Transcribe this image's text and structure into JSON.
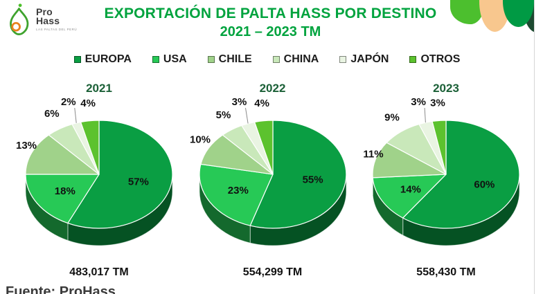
{
  "logo": {
    "brand_line1": "Pro",
    "brand_line2": "Hass",
    "tagline": "LAS PALTAS DEL PERÚ",
    "avocado_stroke": "#3fa32e",
    "pit_stroke": "#e8821e",
    "leaf_dot": "#4cbf2a"
  },
  "header": {
    "title_line1": "EXPORTACIÓN DE PALTA HASS POR DESTINO",
    "title_line2": "2021 – 2023  TM",
    "title_color": "#00a33e"
  },
  "decor": {
    "blob_colors": [
      "#4cbf2e",
      "#f8c78e",
      "#009a44",
      "#1d4a31"
    ]
  },
  "source_note": "Fuente: ProHass",
  "chart_data": {
    "type": "pie",
    "style": "3d",
    "title": "EXPORTACIÓN DE PALTA HASS POR DESTINO 2021 – 2023 TM",
    "unit": "%",
    "legend": [
      "EUROPA",
      "USA",
      "CHILE",
      "CHINA",
      "JAPÓN",
      "OTROS"
    ],
    "legend_position": "top",
    "colors": [
      "#0a9e43",
      "#27c956",
      "#a0d28a",
      "#c9e8ba",
      "#e9f4e2",
      "#5cc22e"
    ],
    "pies": [
      {
        "year": "2021",
        "values": [
          57,
          18,
          13,
          6,
          2,
          4
        ],
        "total_label": "483,017 TM"
      },
      {
        "year": "2022",
        "values": [
          55,
          23,
          10,
          5,
          3,
          4
        ],
        "total_label": "554,299 TM"
      },
      {
        "year": "2023",
        "values": [
          60,
          14,
          11,
          9,
          3,
          3
        ],
        "total_label": "558,430 TM"
      }
    ]
  }
}
